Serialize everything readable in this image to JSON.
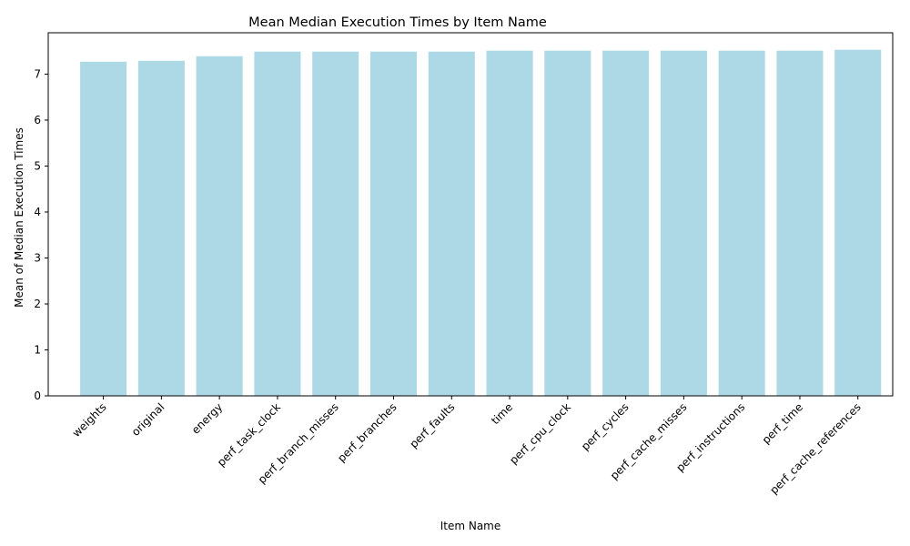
{
  "chart_data": {
    "type": "bar",
    "title": "Mean Median Execution Times by Item Name",
    "xlabel": "Item Name",
    "ylabel": "Mean of Median Execution Times",
    "categories": [
      "weights",
      "original",
      "energy",
      "perf_task_clock",
      "perf_branch_misses",
      "perf_branches",
      "perf_faults",
      "time",
      "perf_cpu_clock",
      "perf_cycles",
      "perf_cache_misses",
      "perf_instructions",
      "perf_time",
      "perf_cache_references"
    ],
    "values": [
      7.27,
      7.29,
      7.39,
      7.49,
      7.49,
      7.49,
      7.49,
      7.51,
      7.51,
      7.51,
      7.51,
      7.51,
      7.51,
      7.53
    ],
    "ylim": [
      0,
      7.9
    ],
    "yticks": [
      0,
      1,
      2,
      3,
      4,
      5,
      6,
      7
    ],
    "grid": false,
    "bar_color": "#add8e6"
  }
}
